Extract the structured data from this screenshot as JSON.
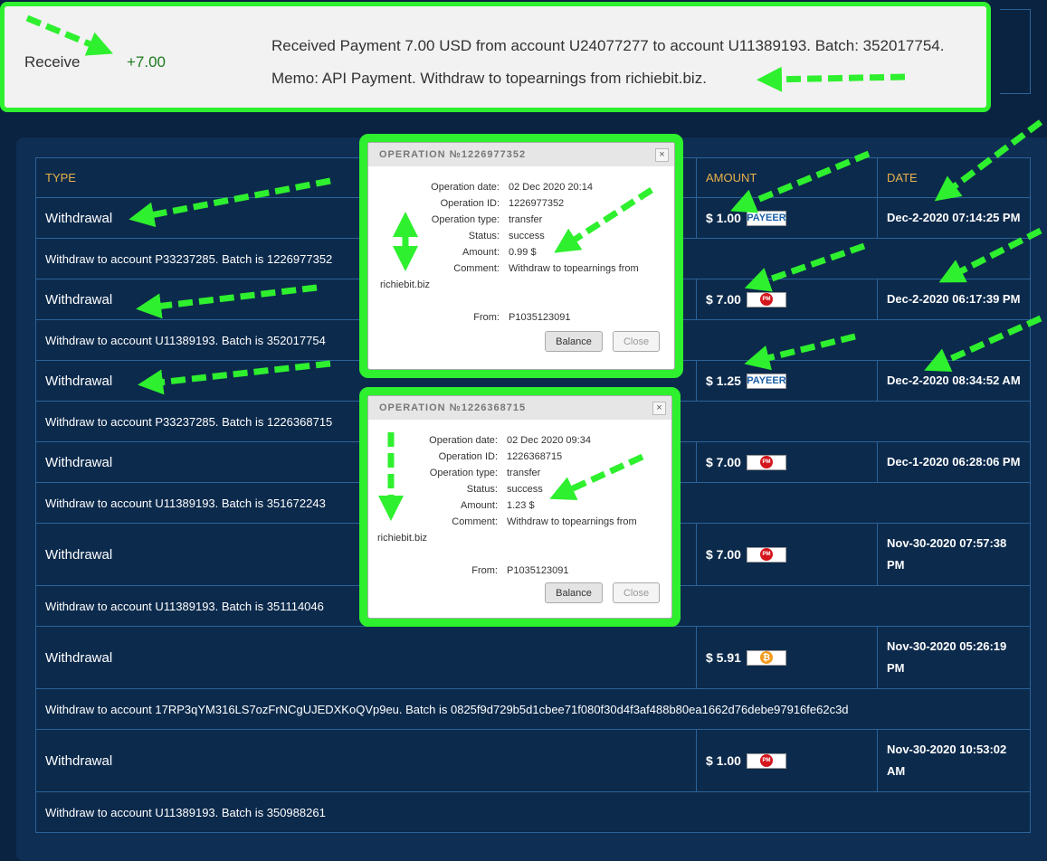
{
  "receipt": {
    "type": "Receive",
    "amount": "+7.00",
    "message": "Received Payment 7.00 USD from account U24077277 to account U11389193. Batch: 352017754.",
    "memo": "Memo: API Payment. Withdraw to topearnings from richiebit.biz."
  },
  "table": {
    "headers": [
      "TYPE",
      "AMOUNT",
      "DATE"
    ],
    "rows": [
      {
        "type": "Withdrawal",
        "amount": "$ 1.00",
        "method": "PAYEER",
        "date": "Dec-2-2020 07:14:25 PM",
        "detail": "Withdraw to account P33237285. Batch is 1226977352"
      },
      {
        "type": "Withdrawal",
        "amount": "$ 7.00",
        "method": "PM",
        "date": "Dec-2-2020 06:17:39 PM",
        "detail": "Withdraw to account U11389193. Batch is 352017754"
      },
      {
        "type": "Withdrawal",
        "amount": "$ 1.25",
        "method": "PAYEER",
        "date": "Dec-2-2020 08:34:52 AM",
        "detail": "Withdraw to account P33237285. Batch is 1226368715"
      },
      {
        "type": "Withdrawal",
        "amount": "$ 7.00",
        "method": "PM",
        "date": "Dec-1-2020 06:28:06 PM",
        "detail": "Withdraw to account U11389193. Batch is 351672243"
      },
      {
        "type": "Withdrawal",
        "amount": "$ 7.00",
        "method": "PM",
        "date": "Nov-30-2020 07:57:38 PM",
        "detail": "Withdraw to account U11389193. Batch is 351114046"
      },
      {
        "type": "Withdrawal",
        "amount": "$ 5.91",
        "method": "₿",
        "date": "Nov-30-2020 05:26:19 PM",
        "detail": "Withdraw to account 17RP3qYM316LS7ozFrNCgUJEDXKoQVp9eu. Batch is 0825f9d729b5d1cbee71f080f30d4f3af488b80ea1662d76debe97916fe62c3d"
      },
      {
        "type": "Withdrawal",
        "amount": "$ 1.00",
        "method": "PM",
        "date": "Nov-30-2020 10:53:02 AM",
        "detail": "Withdraw to account U11389193. Batch is 350988261"
      }
    ]
  },
  "popups": [
    {
      "title": "OPERATION №1226977352",
      "close_x": "×",
      "fields": [
        {
          "label": "Operation date:",
          "value": "02 Dec 2020 20:14"
        },
        {
          "label": "Operation ID:",
          "value": "1226977352"
        },
        {
          "label": "Operation type:",
          "value": "transfer"
        },
        {
          "label": "Status:",
          "value": "success"
        },
        {
          "label": "Amount:",
          "value": "0.99 $"
        },
        {
          "label": "Comment:",
          "value": "Withdraw to topearnings from"
        }
      ],
      "comment_cont": "richiebit.biz",
      "from": {
        "label": "From:",
        "value": "P1035123091"
      },
      "buttons": [
        "Balance",
        "Close"
      ]
    },
    {
      "title": "OPERATION №1226368715",
      "close_x": "×",
      "fields": [
        {
          "label": "Operation date:",
          "value": "02 Dec 2020 09:34"
        },
        {
          "label": "Operation ID:",
          "value": "1226368715"
        },
        {
          "label": "Operation type:",
          "value": "transfer"
        },
        {
          "label": "Status:",
          "value": "success"
        },
        {
          "label": "Amount:",
          "value": "1.23 $"
        },
        {
          "label": "Comment:",
          "value": "Withdraw to topearnings from"
        }
      ],
      "comment_cont": "richiebit.biz",
      "from": {
        "label": "From:",
        "value": "P1035123091"
      },
      "buttons": [
        "Balance",
        "Close"
      ]
    }
  ]
}
